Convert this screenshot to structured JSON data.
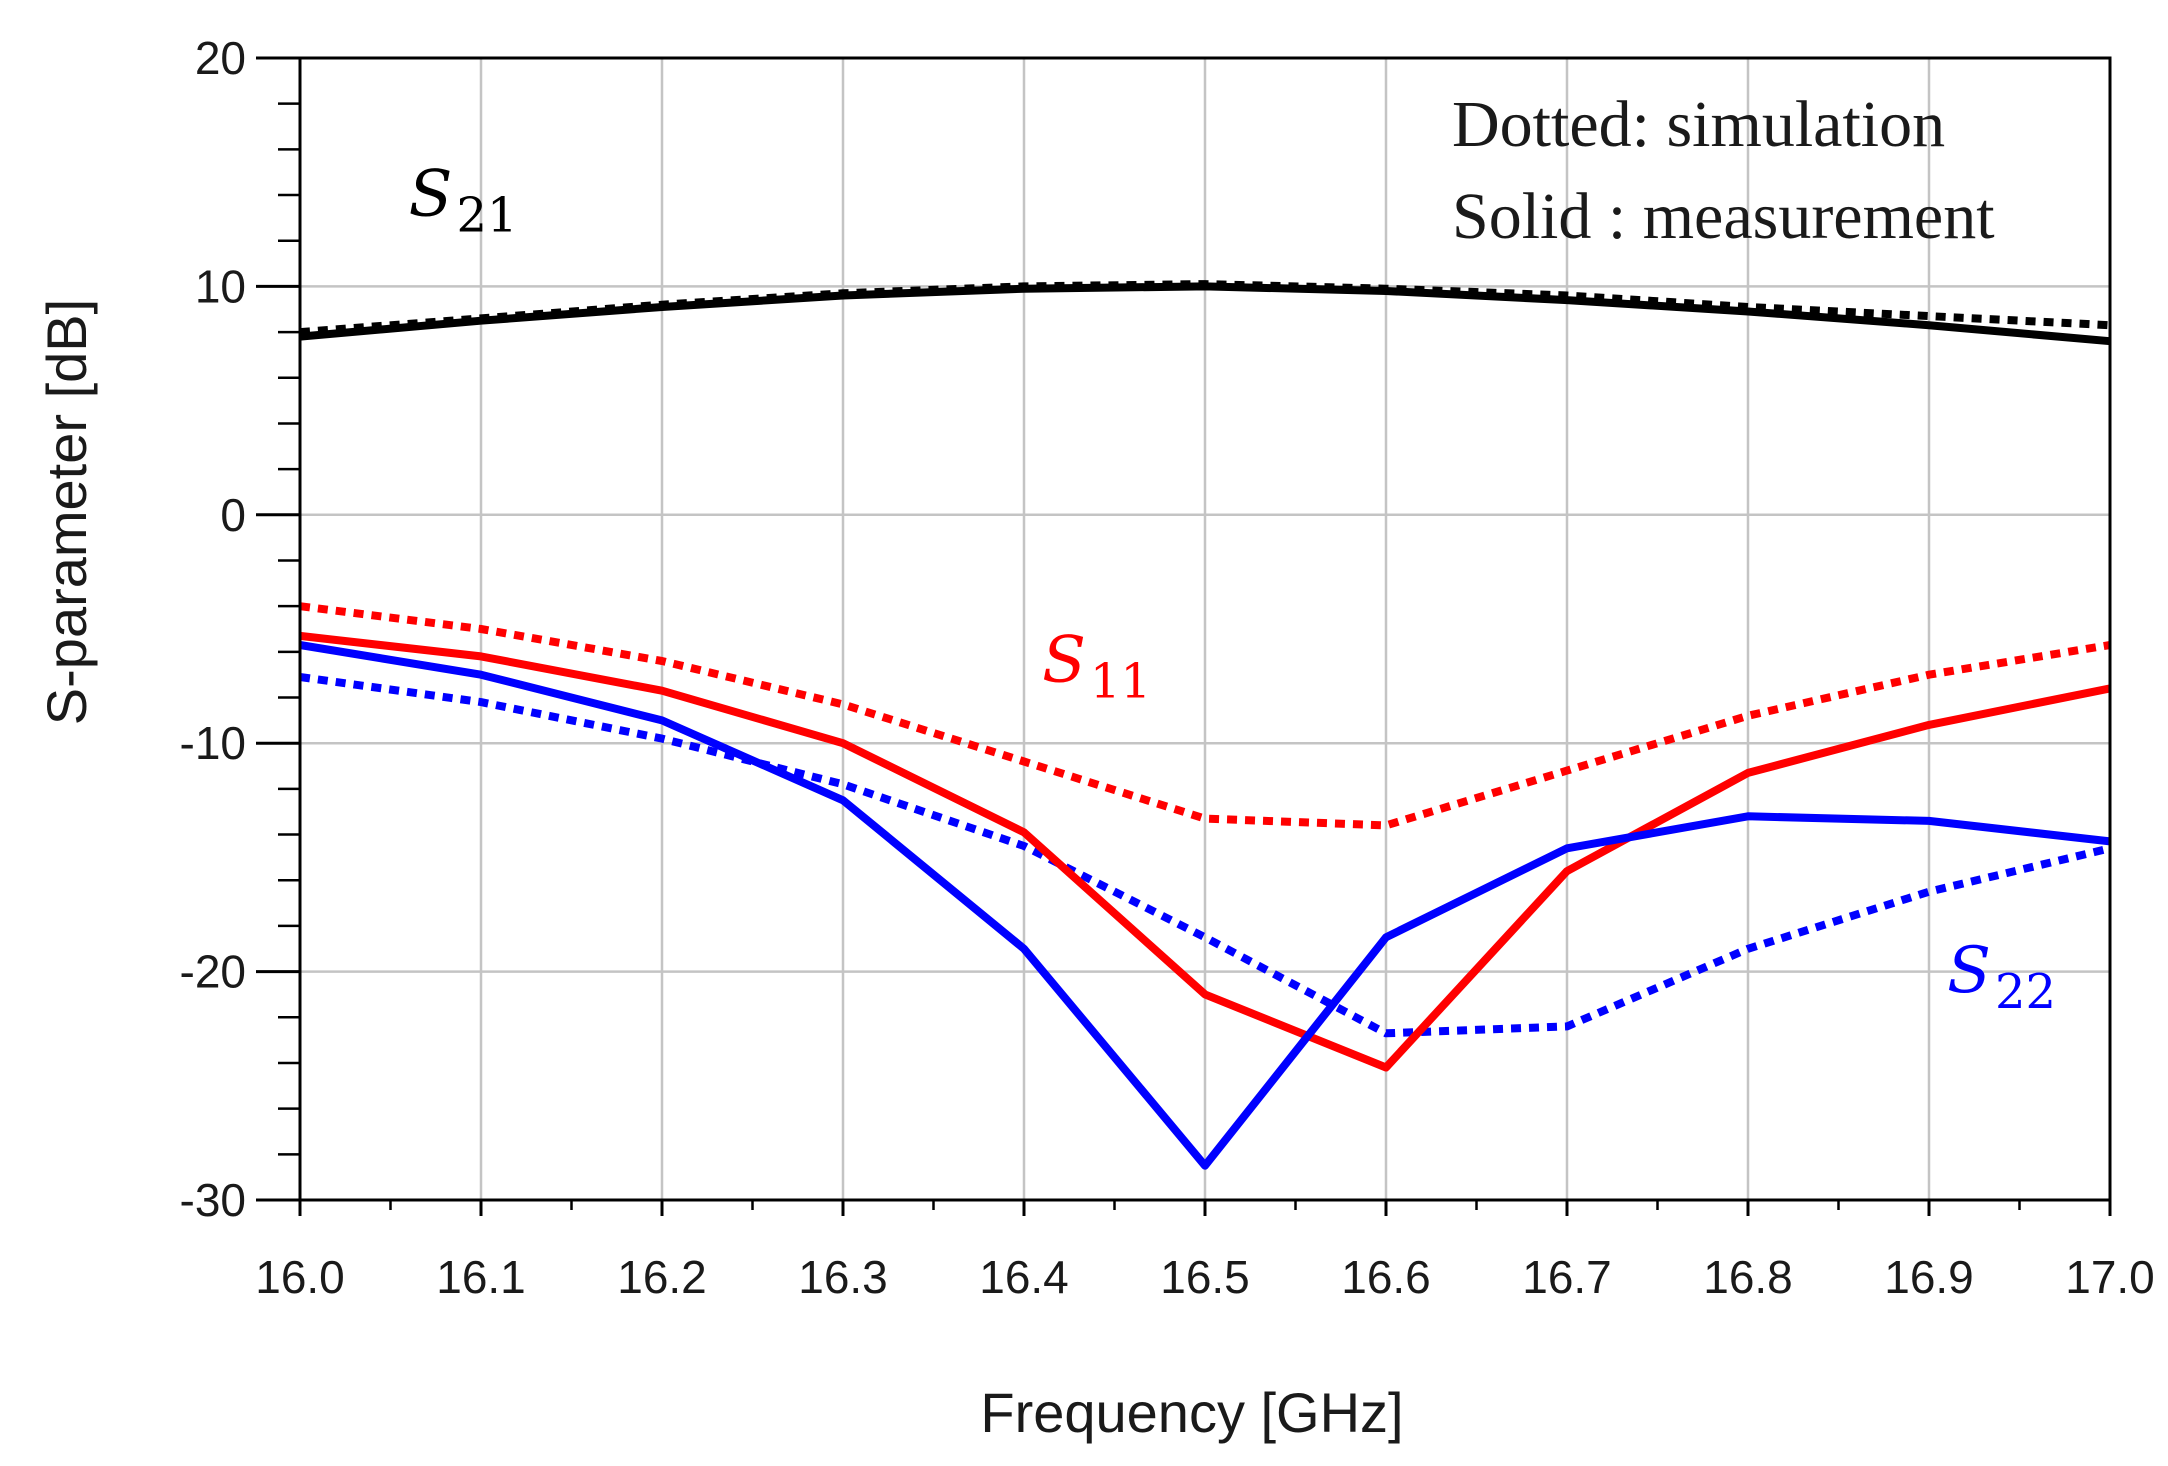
{
  "chart_data": {
    "type": "line",
    "title": "",
    "xlabel": "Frequency [GHz]",
    "ylabel": "S-parameter [dB]",
    "xlim": [
      16.0,
      17.0
    ],
    "ylim": [
      -30,
      20
    ],
    "x_ticks": [
      "16.0",
      "16.1",
      "16.2",
      "16.3",
      "16.4",
      "16.5",
      "16.6",
      "16.7",
      "16.8",
      "16.9",
      "17.0"
    ],
    "y_ticks": [
      "20",
      "10",
      "0",
      "-10",
      "-20",
      "-30"
    ],
    "grid": true,
    "legend": {
      "position": "top-right",
      "lines": [
        "Dotted: simulation",
        "Solid : measurement"
      ]
    },
    "x": [
      16.0,
      16.1,
      16.2,
      16.3,
      16.4,
      16.5,
      16.6,
      16.7,
      16.8,
      16.9,
      17.0
    ],
    "series": [
      {
        "name": "S21 measurement",
        "style": "solid",
        "color": "#000000",
        "values": [
          7.8,
          8.5,
          9.1,
          9.6,
          9.9,
          10.0,
          9.8,
          9.4,
          8.9,
          8.3,
          7.6
        ]
      },
      {
        "name": "S21 simulation",
        "style": "dotted",
        "color": "#000000",
        "values": [
          8.0,
          8.6,
          9.2,
          9.7,
          10.0,
          10.1,
          9.9,
          9.6,
          9.1,
          8.7,
          8.3
        ]
      },
      {
        "name": "S11 measurement",
        "style": "solid",
        "color": "#ff0000",
        "values": [
          -5.3,
          -6.2,
          -7.7,
          -10.0,
          -13.9,
          -21.0,
          -24.2,
          -15.6,
          -11.3,
          -9.2,
          -7.6
        ]
      },
      {
        "name": "S11 simulation",
        "style": "dotted",
        "color": "#ff0000",
        "values": [
          -4.0,
          -5.0,
          -6.4,
          -8.3,
          -10.8,
          -13.3,
          -13.6,
          -11.2,
          -8.8,
          -7.0,
          -5.7
        ]
      },
      {
        "name": "S22 measurement",
        "style": "solid",
        "color": "#0000ff",
        "values": [
          -5.7,
          -7.0,
          -9.0,
          -12.5,
          -19.0,
          -28.5,
          -18.5,
          -14.6,
          -13.2,
          -13.4,
          -14.3
        ]
      },
      {
        "name": "S22 simulation",
        "style": "dotted",
        "color": "#0000ff",
        "values": [
          -7.1,
          -8.2,
          -9.8,
          -11.8,
          -14.5,
          -18.5,
          -22.7,
          -22.4,
          -19.0,
          -16.5,
          -14.6
        ]
      }
    ],
    "annotations": [
      {
        "symbol": "S",
        "sub": "21",
        "color": "#000000",
        "x": 16.06,
        "y": 13.1
      },
      {
        "symbol": "S",
        "sub": "11",
        "color": "#ff0000",
        "x": 16.41,
        "y": -7.3
      },
      {
        "symbol": "S",
        "sub": "22",
        "color": "#0000ff",
        "x": 16.91,
        "y": -20.9
      }
    ]
  }
}
